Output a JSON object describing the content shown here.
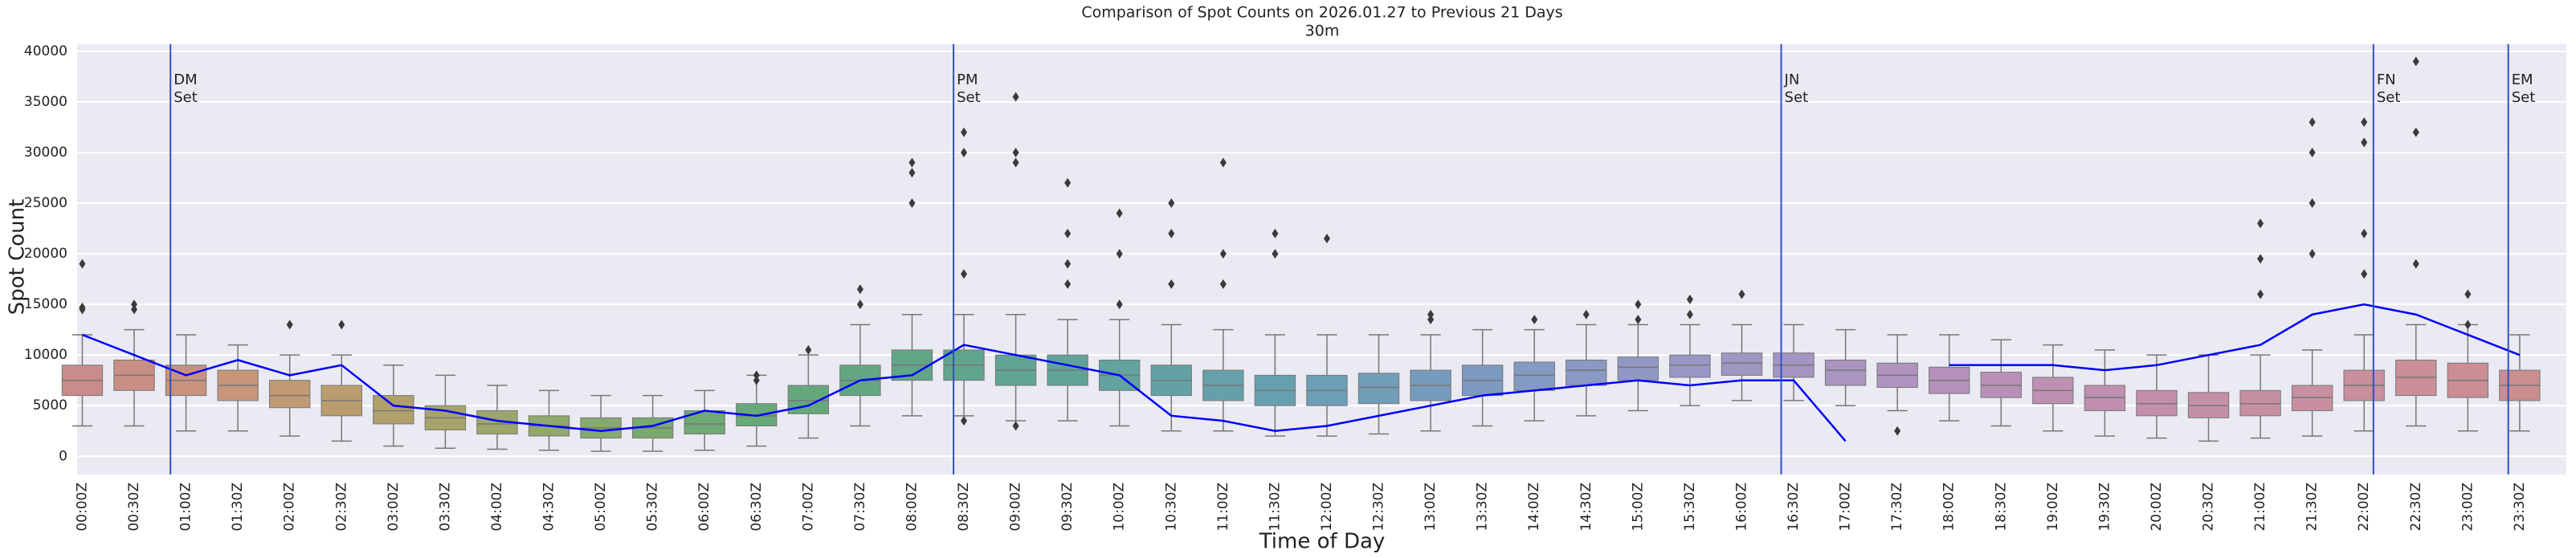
{
  "chart_data": {
    "type": "box",
    "title": "Comparison of Spot Counts on 2026.01.27 to Previous 21 Days",
    "subtitle": "30m",
    "x_label": "Time of Day",
    "y_label": "Spot Count",
    "background": "#eaeaf2",
    "grid": true,
    "whisker_color": "#777777",
    "outlier_color": "#3a3a3a",
    "ylim": [
      -1800,
      40700
    ],
    "yticks": [
      0,
      5000,
      10000,
      15000,
      20000,
      25000,
      30000,
      35000,
      40000
    ],
    "xlim": [
      -0.05,
      23.95
    ],
    "x_step": 0.5,
    "categories": [
      "00:00Z",
      "00:30Z",
      "01:00Z",
      "01:30Z",
      "02:00Z",
      "02:30Z",
      "03:00Z",
      "03:30Z",
      "04:00Z",
      "04:30Z",
      "05:00Z",
      "05:30Z",
      "06:00Z",
      "06:30Z",
      "07:00Z",
      "07:30Z",
      "08:00Z",
      "08:30Z",
      "09:00Z",
      "09:30Z",
      "10:00Z",
      "10:30Z",
      "11:00Z",
      "11:30Z",
      "12:00Z",
      "12:30Z",
      "13:00Z",
      "13:30Z",
      "14:00Z",
      "14:30Z",
      "15:00Z",
      "15:30Z",
      "16:00Z",
      "16:30Z",
      "17:00Z",
      "17:30Z",
      "18:00Z",
      "18:30Z",
      "19:00Z",
      "19:30Z",
      "20:00Z",
      "20:30Z",
      "21:00Z",
      "21:30Z",
      "22:00Z",
      "22:30Z",
      "23:00Z",
      "23:30Z"
    ],
    "boxes": [
      {
        "low": 3000,
        "q1": 6000,
        "median": 7500,
        "q3": 9000,
        "high": 12000,
        "color": "#c98b8b",
        "outliers": [
          19000,
          14500,
          14700
        ]
      },
      {
        "low": 3000,
        "q1": 6500,
        "median": 8000,
        "q3": 9500,
        "high": 12500,
        "color": "#c98e84",
        "outliers": [
          15000,
          14500
        ]
      },
      {
        "low": 2500,
        "q1": 6000,
        "median": 7500,
        "q3": 9000,
        "high": 12000,
        "color": "#c9927f"
      },
      {
        "low": 2500,
        "q1": 5500,
        "median": 7000,
        "q3": 8500,
        "high": 11000,
        "color": "#c6957a"
      },
      {
        "low": 2000,
        "q1": 4800,
        "median": 6000,
        "q3": 7500,
        "high": 10000,
        "color": "#c09a72",
        "outliers": [
          13000
        ]
      },
      {
        "low": 1500,
        "q1": 4000,
        "median": 5500,
        "q3": 7000,
        "high": 10000,
        "color": "#b99d6c",
        "outliers": [
          13000
        ]
      },
      {
        "low": 1000,
        "q1": 3200,
        "median": 4500,
        "q3": 6000,
        "high": 9000,
        "color": "#b0a06a"
      },
      {
        "low": 800,
        "q1": 2600,
        "median": 3800,
        "q3": 5000,
        "high": 8000,
        "color": "#a6a36a"
      },
      {
        "low": 700,
        "q1": 2200,
        "median": 3200,
        "q3": 4500,
        "high": 7000,
        "color": "#9ca66a"
      },
      {
        "low": 600,
        "q1": 2000,
        "median": 3000,
        "q3": 4000,
        "high": 6500,
        "color": "#90a86c"
      },
      {
        "low": 500,
        "q1": 1800,
        "median": 2800,
        "q3": 3800,
        "high": 6000,
        "color": "#85a96e"
      },
      {
        "low": 500,
        "q1": 1800,
        "median": 2800,
        "q3": 3800,
        "high": 6000,
        "color": "#7aa970"
      },
      {
        "low": 600,
        "q1": 2200,
        "median": 3200,
        "q3": 4500,
        "high": 6500,
        "color": "#70a973"
      },
      {
        "low": 1000,
        "q1": 3000,
        "median": 4000,
        "q3": 5200,
        "high": 8000,
        "color": "#69a877",
        "outliers": [
          7500,
          8000
        ]
      },
      {
        "low": 1800,
        "q1": 4200,
        "median": 5500,
        "q3": 7000,
        "high": 10000,
        "color": "#65a87c",
        "outliers": [
          10500
        ]
      },
      {
        "low": 3000,
        "q1": 6000,
        "median": 7500,
        "q3": 9000,
        "high": 13000,
        "color": "#62a781",
        "outliers": [
          15000,
          16500
        ]
      },
      {
        "low": 4000,
        "q1": 7500,
        "median": 9000,
        "q3": 10500,
        "high": 14000,
        "color": "#61a687",
        "outliers": [
          25000,
          28000,
          29000
        ]
      },
      {
        "low": 4000,
        "q1": 7500,
        "median": 9000,
        "q3": 10500,
        "high": 14000,
        "color": "#60a58d",
        "outliers": [
          30000,
          32000,
          18000,
          3500
        ]
      },
      {
        "low": 3500,
        "q1": 7000,
        "median": 8500,
        "q3": 10000,
        "high": 14000,
        "color": "#60a493",
        "outliers": [
          35500,
          30000,
          29000,
          3000
        ]
      },
      {
        "low": 3500,
        "q1": 7000,
        "median": 8500,
        "q3": 10000,
        "high": 13500,
        "color": "#61a399",
        "outliers": [
          27000,
          22000,
          17000,
          19000
        ]
      },
      {
        "low": 3000,
        "q1": 6500,
        "median": 8000,
        "q3": 9500,
        "high": 13500,
        "color": "#62a29f",
        "outliers": [
          24000,
          20000,
          15000
        ]
      },
      {
        "low": 2500,
        "q1": 6000,
        "median": 7500,
        "q3": 9000,
        "high": 13000,
        "color": "#63a1a5",
        "outliers": [
          25000,
          22000,
          17000
        ]
      },
      {
        "low": 2500,
        "q1": 5500,
        "median": 7000,
        "q3": 8500,
        "high": 12500,
        "color": "#65a0ab",
        "outliers": [
          29000,
          20000,
          17000
        ]
      },
      {
        "low": 2000,
        "q1": 5000,
        "median": 6500,
        "q3": 8000,
        "high": 12000,
        "color": "#689fb0",
        "outliers": [
          22000,
          20000
        ]
      },
      {
        "low": 2000,
        "q1": 5000,
        "median": 6500,
        "q3": 8000,
        "high": 12000,
        "color": "#6c9eb5",
        "outliers": [
          21500
        ]
      },
      {
        "low": 2200,
        "q1": 5200,
        "median": 6800,
        "q3": 8200,
        "high": 12000,
        "color": "#719db9"
      },
      {
        "low": 2500,
        "q1": 5500,
        "median": 7000,
        "q3": 8500,
        "high": 12000,
        "color": "#769cbd",
        "outliers": [
          14000,
          13500
        ]
      },
      {
        "low": 3000,
        "q1": 6000,
        "median": 7500,
        "q3": 9000,
        "high": 12500,
        "color": "#7c9ac0"
      },
      {
        "low": 3500,
        "q1": 6500,
        "median": 8000,
        "q3": 9300,
        "high": 12500,
        "color": "#839ac2",
        "outliers": [
          13500
        ]
      },
      {
        "low": 4000,
        "q1": 7000,
        "median": 8500,
        "q3": 9500,
        "high": 13000,
        "color": "#8a99c3",
        "outliers": [
          14000
        ]
      },
      {
        "low": 4500,
        "q1": 7500,
        "median": 8800,
        "q3": 9800,
        "high": 13000,
        "color": "#9198c4",
        "outliers": [
          15000,
          13500
        ]
      },
      {
        "low": 5000,
        "q1": 7800,
        "median": 9000,
        "q3": 10000,
        "high": 13000,
        "color": "#9897c4",
        "outliers": [
          15500,
          14000
        ]
      },
      {
        "low": 5500,
        "q1": 8000,
        "median": 9200,
        "q3": 10200,
        "high": 13000,
        "color": "#9e96c3",
        "outliers": [
          16000
        ]
      },
      {
        "low": 5500,
        "q1": 7800,
        "median": 9000,
        "q3": 10200,
        "high": 13000,
        "color": "#a495c2"
      },
      {
        "low": 5000,
        "q1": 7000,
        "median": 8500,
        "q3": 9500,
        "high": 12500,
        "color": "#aa94c0"
      },
      {
        "low": 4500,
        "q1": 6800,
        "median": 8000,
        "q3": 9200,
        "high": 12000,
        "color": "#b093be",
        "outliers": [
          2500
        ]
      },
      {
        "low": 3500,
        "q1": 6200,
        "median": 7500,
        "q3": 8800,
        "high": 12000,
        "color": "#b592bb"
      },
      {
        "low": 3000,
        "q1": 5800,
        "median": 7000,
        "q3": 8300,
        "high": 11500,
        "color": "#b991b8"
      },
      {
        "low": 2500,
        "q1": 5200,
        "median": 6500,
        "q3": 7800,
        "high": 11000,
        "color": "#bd90b4"
      },
      {
        "low": 2000,
        "q1": 4500,
        "median": 5800,
        "q3": 7000,
        "high": 10500,
        "color": "#c08fb0"
      },
      {
        "low": 1800,
        "q1": 4000,
        "median": 5200,
        "q3": 6500,
        "high": 10000,
        "color": "#c38fac"
      },
      {
        "low": 1500,
        "q1": 3800,
        "median": 5000,
        "q3": 6300,
        "high": 10000,
        "color": "#c58fa8"
      },
      {
        "low": 1800,
        "q1": 4000,
        "median": 5200,
        "q3": 6500,
        "high": 10000,
        "color": "#c78fa4",
        "outliers": [
          19500,
          23000,
          16000
        ]
      },
      {
        "low": 2000,
        "q1": 4500,
        "median": 5800,
        "q3": 7000,
        "high": 10500,
        "color": "#c88fa0",
        "outliers": [
          25000,
          30000,
          33000,
          20000
        ]
      },
      {
        "low": 2500,
        "q1": 5500,
        "median": 7000,
        "q3": 8500,
        "high": 12000,
        "color": "#c98f9c",
        "outliers": [
          33000,
          31000,
          22000,
          18000
        ]
      },
      {
        "low": 3000,
        "q1": 6000,
        "median": 7800,
        "q3": 9500,
        "high": 13000,
        "color": "#ca8f98",
        "outliers": [
          39000,
          32000,
          19000
        ]
      },
      {
        "low": 2500,
        "q1": 5800,
        "median": 7500,
        "q3": 9200,
        "high": 13000,
        "color": "#ca8e94",
        "outliers": [
          16000,
          13000
        ]
      },
      {
        "low": 2500,
        "q1": 5500,
        "median": 7000,
        "q3": 8500,
        "high": 12000,
        "color": "#ca8d90"
      }
    ],
    "line": {
      "color": "#0000ff",
      "values": [
        12000,
        10000,
        8000,
        9500,
        8000,
        9000,
        5000,
        4500,
        3500,
        3000,
        2500,
        3000,
        4500,
        4000,
        5000,
        7500,
        8000,
        11000,
        10000,
        9000,
        8000,
        4000,
        3500,
        2500,
        3000,
        4000,
        5000,
        6000,
        6500,
        7000,
        7500,
        7000,
        7500,
        7500,
        1500,
        null,
        9000,
        9000,
        9000,
        8500,
        9000,
        10000,
        11000,
        14000,
        15000,
        14000,
        12000,
        10000
      ]
    },
    "annotations": [
      {
        "x": 0.85,
        "lines": [
          "DM",
          "Set"
        ]
      },
      {
        "x": 8.4,
        "lines": [
          "PM",
          "Set"
        ]
      },
      {
        "x": 16.38,
        "lines": [
          "JN",
          "Set"
        ]
      },
      {
        "x": 22.09,
        "lines": [
          "FN",
          "Set"
        ]
      },
      {
        "x": 23.39,
        "lines": [
          "EM",
          "Set"
        ]
      }
    ],
    "annotation_color": "#3050c8"
  }
}
